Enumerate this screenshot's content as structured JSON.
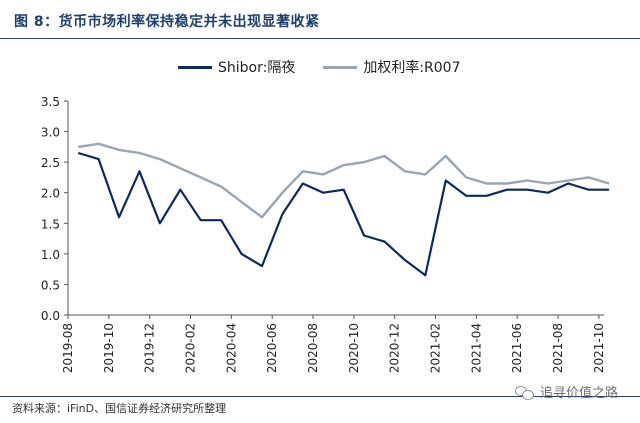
{
  "title": "图 8：货币市场利率保持稳定并未出现显著收紧",
  "source": "资料来源：iFinD、国信证券经济研究所整理",
  "watermark": "追寻价值之路",
  "watermark_icon": "wechat-icon",
  "chart_data": {
    "type": "line",
    "colors": {
      "Shibor:隔夜": "#0d2a5c",
      "加权利率:R007": "#9aa5b1"
    },
    "ylim": [
      0,
      3.5
    ],
    "yticks": [
      "0.0",
      "0.5",
      "1.0",
      "1.5",
      "2.0",
      "2.5",
      "3.0",
      "3.5"
    ],
    "xticks": [
      "2019-08",
      "2019-10",
      "2019-12",
      "2020-02",
      "2020-04",
      "2020-06",
      "2020-08",
      "2020-10",
      "2020-12",
      "2021-02",
      "2021-04",
      "2021-06",
      "2021-08",
      "2021-10"
    ],
    "grid": false,
    "legend_position": "top",
    "series": [
      {
        "name": "Shibor:隔夜",
        "x": [
          "2019-08",
          "2019-09",
          "2019-10",
          "2019-11",
          "2019-12",
          "2020-01",
          "2020-02",
          "2020-03",
          "2020-04",
          "2020-05",
          "2020-06",
          "2020-07",
          "2020-08",
          "2020-09",
          "2020-10",
          "2020-11",
          "2020-12",
          "2021-01",
          "2021-02",
          "2021-03",
          "2021-04",
          "2021-05",
          "2021-06",
          "2021-07",
          "2021-08",
          "2021-09",
          "2021-10"
        ],
        "values": [
          2.65,
          2.55,
          1.6,
          2.35,
          1.5,
          2.05,
          1.55,
          1.55,
          1.0,
          0.8,
          1.65,
          2.15,
          2.0,
          2.05,
          1.3,
          1.2,
          0.9,
          0.65,
          2.2,
          1.95,
          1.95,
          2.05,
          2.05,
          2.0,
          2.15,
          2.05,
          2.05
        ]
      },
      {
        "name": "加权利率:R007",
        "x": [
          "2019-08",
          "2019-09",
          "2019-10",
          "2019-11",
          "2019-12",
          "2020-01",
          "2020-02",
          "2020-03",
          "2020-04",
          "2020-05",
          "2020-06",
          "2020-07",
          "2020-08",
          "2020-09",
          "2020-10",
          "2020-11",
          "2020-12",
          "2021-01",
          "2021-02",
          "2021-03",
          "2021-04",
          "2021-05",
          "2021-06",
          "2021-07",
          "2021-08",
          "2021-09",
          "2021-10"
        ],
        "values": [
          2.75,
          2.8,
          2.7,
          2.65,
          2.55,
          2.4,
          2.25,
          2.1,
          1.85,
          1.6,
          2.0,
          2.35,
          2.3,
          2.45,
          2.5,
          2.6,
          2.35,
          2.3,
          2.6,
          2.25,
          2.15,
          2.15,
          2.2,
          2.15,
          2.2,
          2.25,
          2.15
        ]
      }
    ]
  }
}
